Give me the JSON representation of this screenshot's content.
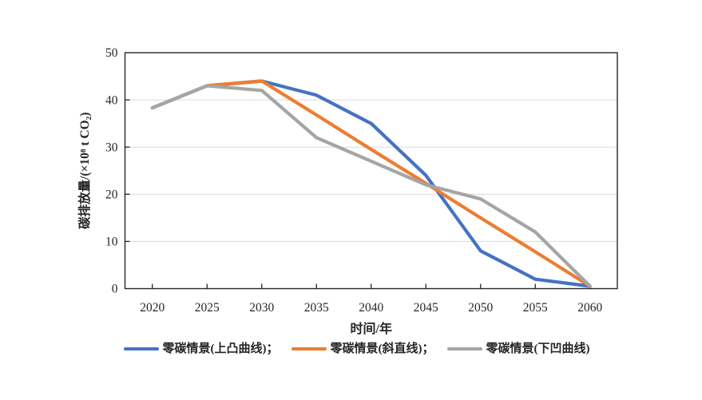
{
  "chart_data": {
    "type": "line",
    "title": "",
    "xlabel": "时间/年",
    "ylabel": "碳排放量/(×10⁸ t CO₂)",
    "x": [
      2020,
      2025,
      2030,
      2035,
      2040,
      2045,
      2050,
      2055,
      2060
    ],
    "ylim": [
      0,
      50
    ],
    "yticks": [
      0,
      10,
      20,
      30,
      40,
      50
    ],
    "grid": "horizontal-light",
    "legend_position": "bottom",
    "tick_style": "inside",
    "series": [
      {
        "id": "convex",
        "name": "零碳情景(上凸曲线)",
        "color": "#4472C4",
        "values": [
          38.3,
          43,
          44,
          41,
          35,
          24,
          8,
          2,
          0.5
        ]
      },
      {
        "id": "straight",
        "name": "零碳情景(斜直线)",
        "color": "#ED7D31",
        "values": [
          38.3,
          43,
          44,
          36.8,
          29.5,
          22.3,
          15,
          7.8,
          0.5
        ]
      },
      {
        "id": "concave",
        "name": "零碳情景(下凹曲线)",
        "color": "#A5A5A5",
        "values": [
          38.3,
          43,
          42,
          32,
          27,
          22,
          19,
          12,
          0.5
        ]
      }
    ]
  },
  "legend": {
    "items": [
      {
        "series": "convex",
        "label": "零碳情景(上凸曲线)；",
        "color": "#4472C4"
      },
      {
        "series": "straight",
        "label": "零碳情景(斜直线)；",
        "color": "#ED7D31"
      },
      {
        "series": "concave",
        "label": "零碳情景(下凹曲线)",
        "color": "#A5A5A5"
      }
    ]
  },
  "colors": {
    "axis": "#262626",
    "tick_label": "#262626",
    "grid": "#D9D9D9",
    "background": "#FFFFFF"
  }
}
